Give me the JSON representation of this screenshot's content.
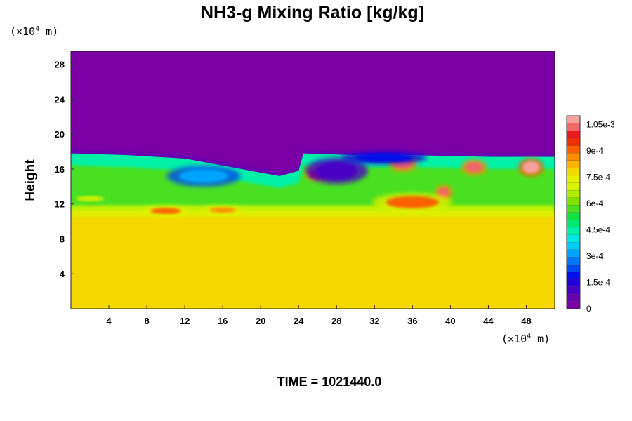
{
  "chart_data": {
    "type": "heatmap",
    "title": "NH3-g Mixing Ratio [kg/kg]",
    "ylabel": "Height",
    "xlabel": "",
    "x_unit": {
      "prefix": "(×10",
      "exp": "4",
      "suffix": " m)"
    },
    "y_unit": {
      "prefix": "(×10",
      "exp": "4",
      "suffix": " m)"
    },
    "xlim": [
      0,
      51
    ],
    "ylim": [
      0,
      29.5
    ],
    "x_ticks": [
      4,
      8,
      12,
      16,
      20,
      24,
      28,
      32,
      36,
      40,
      44,
      48
    ],
    "x_tick_labels": [
      "4",
      "8",
      "12",
      "16",
      "20",
      "24",
      "28",
      "32",
      "36",
      "40",
      "44",
      "48"
    ],
    "y_ticks": [
      4,
      8,
      12,
      16,
      20,
      24,
      28
    ],
    "y_tick_labels": [
      "4",
      "8",
      "12",
      "16",
      "20",
      "24",
      "28"
    ],
    "colorbar": {
      "min": 0,
      "max": 0.0011,
      "colors": [
        "#7a00a6",
        "#6800b0",
        "#4a00c4",
        "#2400d8",
        "#0010e8",
        "#0048f0",
        "#0078f8",
        "#00a4fc",
        "#00ccf8",
        "#00e8e0",
        "#00f0a8",
        "#00e870",
        "#10e040",
        "#48e020",
        "#80e400",
        "#b0ec00",
        "#d8f400",
        "#e8f000",
        "#f4d800",
        "#fcb400",
        "#fc8c00",
        "#f86000",
        "#f03000",
        "#e81c1c",
        "#f06868",
        "#f8a0a0"
      ],
      "tick_values": [
        0,
        0.00015,
        0.0003,
        0.00045,
        0.0006,
        0.00075,
        0.0009,
        0.00105
      ],
      "tick_labels": [
        "0",
        "1.5e-4",
        "3e-4",
        "4.5e-4",
        "6e-4",
        "7.5e-4",
        "9e-4",
        "1.05e-3"
      ]
    },
    "regions": {
      "upper_value": 0,
      "lower_value": 0.00078,
      "lower_top_height": 11.2,
      "layer_top_profile": {
        "x": [
          0,
          6,
          12,
          16,
          20,
          22,
          24,
          24.5,
          30,
          36,
          44,
          51
        ],
        "y": [
          18.2,
          18.0,
          17.6,
          16.8,
          16.0,
          15.6,
          16.2,
          18.2,
          18.0,
          18.0,
          17.8,
          17.8
        ]
      },
      "blobs": [
        {
          "x": 10,
          "y": 11.2,
          "rx": 1.6,
          "ry": 0.35,
          "value": 0.0009
        },
        {
          "x": 16,
          "y": 11.3,
          "rx": 1.4,
          "ry": 0.3,
          "value": 0.00088
        },
        {
          "x": 2,
          "y": 12.6,
          "rx": 1.5,
          "ry": 0.3,
          "value": 0.0007
        },
        {
          "x": 26,
          "y": 15.4,
          "rx": 0.9,
          "ry": 0.5,
          "value": 0.001
        },
        {
          "x": 35,
          "y": 16.6,
          "rx": 1.0,
          "ry": 0.6,
          "value": 0.00105
        },
        {
          "x": 39.3,
          "y": 13.3,
          "rx": 0.6,
          "ry": 0.6,
          "value": 0.00105
        },
        {
          "x": 42.5,
          "y": 16.2,
          "rx": 0.9,
          "ry": 0.6,
          "value": 0.00105
        },
        {
          "x": 48.5,
          "y": 16.2,
          "rx": 0.9,
          "ry": 0.7,
          "value": 0.0011
        },
        {
          "x": 36,
          "y": 12.2,
          "rx": 2.8,
          "ry": 0.7,
          "value": 0.0009
        },
        {
          "x": 14,
          "y": 15.2,
          "rx": 2.6,
          "ry": 0.8,
          "value": 0.0003
        },
        {
          "x": 28,
          "y": 15.8,
          "rx": 2.2,
          "ry": 1.0,
          "value": 0.00012
        },
        {
          "x": 33,
          "y": 17.3,
          "rx": 3.0,
          "ry": 0.5,
          "value": 0.0002
        }
      ]
    },
    "time_label": "TIME = 1021440.0"
  }
}
